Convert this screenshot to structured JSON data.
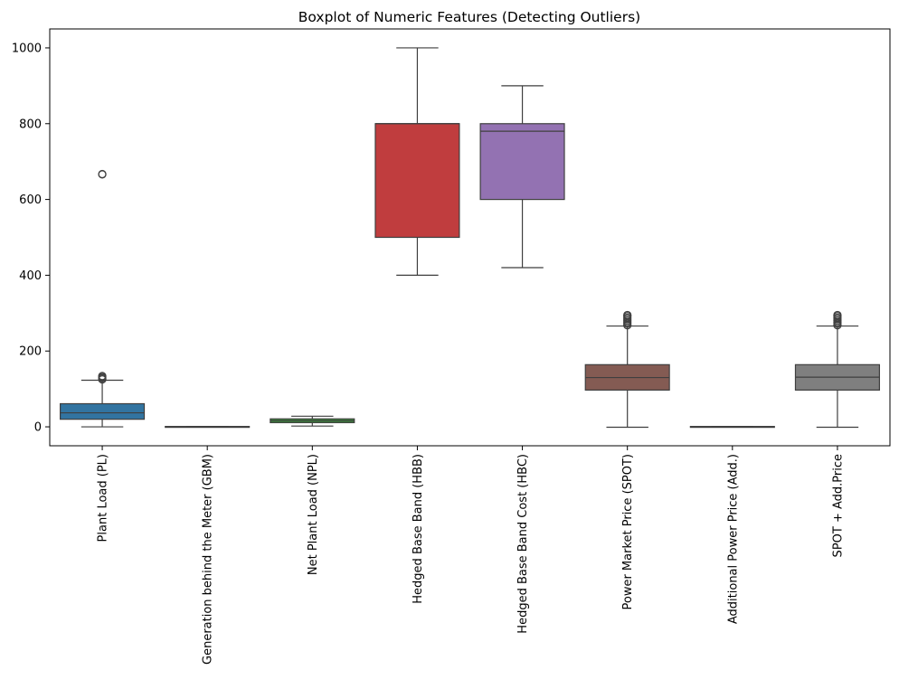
{
  "chart_data": {
    "type": "box",
    "title": "Boxplot of Numeric Features (Detecting Outliers)",
    "xlabel": "",
    "ylabel": "",
    "ylim": [
      -50,
      1050
    ],
    "yticks": [
      0,
      200,
      400,
      600,
      800,
      1000
    ],
    "grid": false,
    "categories": [
      "Plant Load (PL)",
      "Generation behind the Meter (GBM)",
      "Net Plant Load (NPL)",
      "Hedged Base Band (HBB)",
      "Hedged Base Band Cost (HBC)",
      "Power Market Price (SPOT)",
      "Additional Power Price (Add.)",
      "SPOT + Add.Price"
    ],
    "boxes": [
      {
        "category": "Plant Load (PL)",
        "color": "#3274a1",
        "whisker_low": 0,
        "q1": 20,
        "median": 37,
        "q3": 61,
        "whisker_high": 123,
        "outliers": [
          125,
          128,
          131,
          134,
          666,
          667
        ]
      },
      {
        "category": "Generation behind the Meter (GBM)",
        "color": "#e1812c",
        "whisker_low": 0,
        "q1": 0,
        "median": 0,
        "q3": 1,
        "whisker_high": 1,
        "outliers": []
      },
      {
        "category": "Net Plant Load (NPL)",
        "color": "#3a923a",
        "whisker_low": 2,
        "q1": 11,
        "median": 16,
        "q3": 21,
        "whisker_high": 28,
        "outliers": []
      },
      {
        "category": "Hedged Base Band (HBB)",
        "color": "#c03d3e",
        "whisker_low": 400,
        "q1": 500,
        "median": 800,
        "q3": 800,
        "whisker_high": 1000,
        "outliers": []
      },
      {
        "category": "Hedged Base Band Cost (HBC)",
        "color": "#9372b2",
        "whisker_low": 420,
        "q1": 600,
        "median": 780,
        "q3": 800,
        "whisker_high": 900,
        "outliers": []
      },
      {
        "category": "Power Market Price (SPOT)",
        "color": "#845b53",
        "whisker_low": -1,
        "q1": 97,
        "median": 130,
        "q3": 164,
        "whisker_high": 266,
        "outliers": [
          268,
          272,
          276,
          280,
          284,
          288,
          292,
          295
        ]
      },
      {
        "category": "Additional Power Price (Add.)",
        "color": "#d684bd",
        "whisker_low": 0,
        "q1": 0,
        "median": 0,
        "q3": 1,
        "whisker_high": 1,
        "outliers": []
      },
      {
        "category": "SPOT + Add.Price",
        "color": "#7f7f7f",
        "whisker_low": -1,
        "q1": 97,
        "median": 131,
        "q3": 164,
        "whisker_high": 266,
        "outliers": [
          268,
          272,
          276,
          280,
          284,
          288,
          292,
          295
        ]
      }
    ]
  }
}
